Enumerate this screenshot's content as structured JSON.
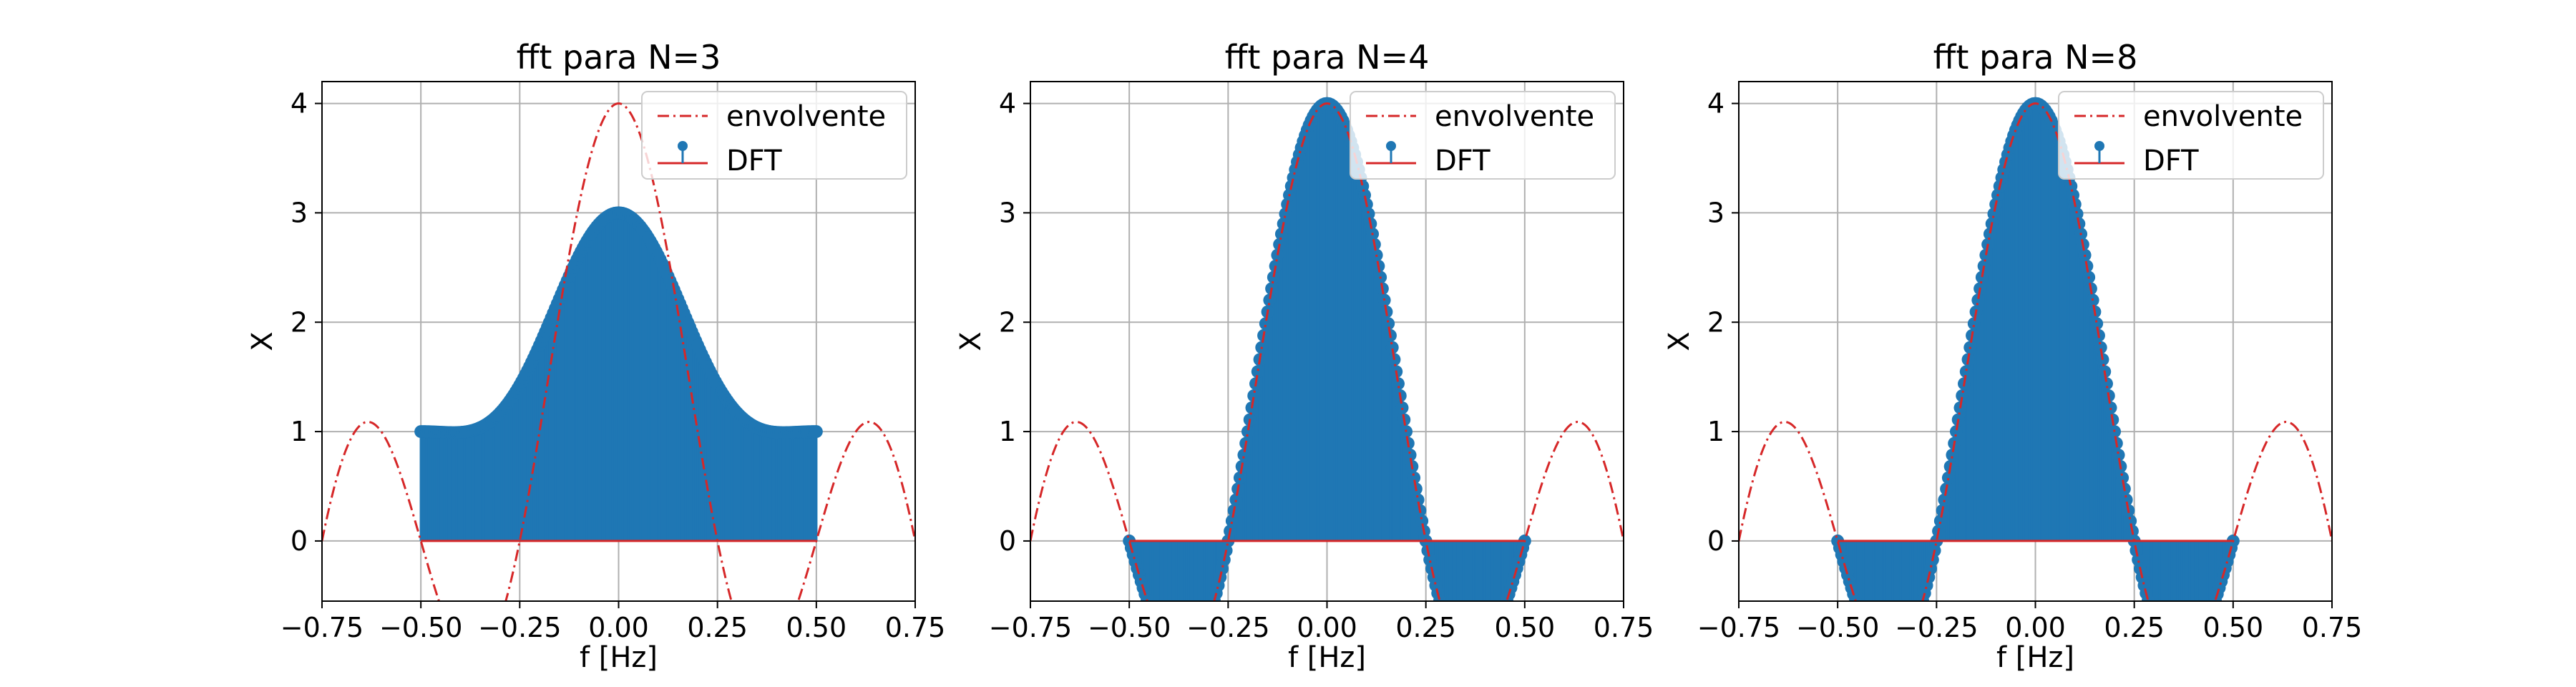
{
  "colors": {
    "envelope": "#d62728",
    "stem": "#1f77b4",
    "baseline": "#d62728",
    "grid": "#b0b0b0",
    "frame": "#000000"
  },
  "legend": {
    "envelope_label": "envolvente",
    "dft_label": "DFT",
    "placement": "upper-right"
  },
  "chart_data": [
    {
      "type": "line+stem",
      "title": "fft para N=3",
      "xlabel": "f [Hz]",
      "ylabel": "X",
      "xlim": [
        -0.75,
        0.75
      ],
      "ylim": [
        -0.55,
        4.2
      ],
      "xticks": [
        "−0.75",
        "−0.50",
        "−0.25",
        "0.00",
        "0.25",
        "0.50",
        "0.75"
      ],
      "xtick_values": [
        -0.75,
        -0.5,
        -0.25,
        0,
        0.25,
        0.5,
        0.75
      ],
      "yticks": [
        "0",
        "1",
        "2",
        "3",
        "4"
      ],
      "ytick_values": [
        0,
        1,
        2,
        3,
        4
      ],
      "grid": true,
      "signal_length": 4,
      "fft_size": 3,
      "envelope_function": "sin(4*pi*f)/sin(pi*f)",
      "dft_function": "sin(4*pi*f)/sin(pi*f), 2-periodic (N=3 aliasing)",
      "stem_range": [
        -0.5,
        0.5
      ],
      "stem_count": 201
    },
    {
      "type": "line+stem",
      "title": "fft para N=4",
      "xlabel": "f [Hz]",
      "ylabel": "X",
      "xlim": [
        -0.75,
        0.75
      ],
      "ylim": [
        -0.55,
        4.2
      ],
      "xticks": [
        "−0.75",
        "−0.50",
        "−0.25",
        "0.00",
        "0.25",
        "0.50",
        "0.75"
      ],
      "xtick_values": [
        -0.75,
        -0.5,
        -0.25,
        0,
        0.25,
        0.5,
        0.75
      ],
      "yticks": [
        "0",
        "1",
        "2",
        "3",
        "4"
      ],
      "ytick_values": [
        0,
        1,
        2,
        3,
        4
      ],
      "grid": true,
      "signal_length": 4,
      "fft_size": 4,
      "envelope_function": "sin(4*pi*f)/sin(pi*f)",
      "dft_function": "sin(4*pi*f)/sin(pi*f)",
      "stem_range": [
        -0.5,
        0.5
      ],
      "stem_count": 201
    },
    {
      "type": "line+stem",
      "title": "fft para N=8",
      "xlabel": "f [Hz]",
      "ylabel": "X",
      "xlim": [
        -0.75,
        0.75
      ],
      "ylim": [
        -0.55,
        4.2
      ],
      "xticks": [
        "−0.75",
        "−0.50",
        "−0.25",
        "0.00",
        "0.25",
        "0.50",
        "0.75"
      ],
      "xtick_values": [
        -0.75,
        -0.5,
        -0.25,
        0,
        0.25,
        0.5,
        0.75
      ],
      "yticks": [
        "0",
        "1",
        "2",
        "3",
        "4"
      ],
      "ytick_values": [
        0,
        1,
        2,
        3,
        4
      ],
      "grid": true,
      "signal_length": 4,
      "fft_size": 8,
      "envelope_function": "sin(4*pi*f)/sin(pi*f)",
      "dft_function": "sin(4*pi*f)/sin(pi*f)",
      "stem_range": [
        -0.5,
        0.5
      ],
      "stem_count": 201
    }
  ]
}
